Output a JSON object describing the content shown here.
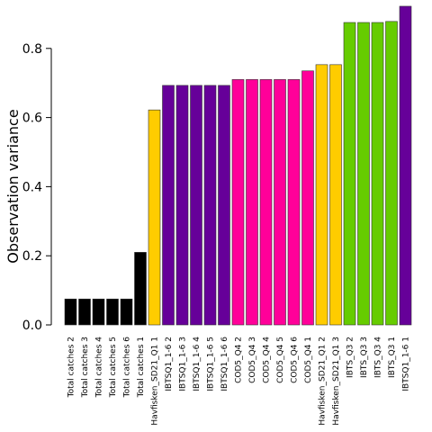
{
  "chart_data": {
    "type": "bar",
    "ylabel": "Observation variance",
    "xlabel": "",
    "ylim": [
      0,
      0.92
    ],
    "yticks": [
      0.0,
      0.2,
      0.4,
      0.6,
      0.8
    ],
    "ytick_labels": [
      "0.0",
      "0.2",
      "0.4",
      "0.6",
      "0.8"
    ],
    "grid": false,
    "categories": [
      "Total catches 2",
      "Total catches 3",
      "Total catches 4",
      "Total catches 5",
      "Total catches 6",
      "Total catches 1",
      "Havfisken_SD21_Q1 1",
      "IBTSQ1_1-6 2",
      "IBTSQ1_1-6 3",
      "IBTSQ1_1-6 4",
      "IBTSQ1_1-6 5",
      "IBTSQ1_1-6 6",
      "COD5_Q4 2",
      "COD5_Q4 3",
      "COD5_Q4 4",
      "COD5_Q4 5",
      "COD5_Q4 6",
      "COD5_Q4 1",
      "Havfisken_SD21_Q1 2",
      "Havfisken_SD21_Q1 3",
      "IBTS_Q3 2",
      "IBTS_Q3 3",
      "IBTS_Q3 4",
      "IBTS_Q3 1",
      "IBTSQ1_1-6 1"
    ],
    "values": [
      0.075,
      0.075,
      0.075,
      0.075,
      0.075,
      0.21,
      0.622,
      0.693,
      0.693,
      0.693,
      0.693,
      0.693,
      0.71,
      0.71,
      0.71,
      0.71,
      0.71,
      0.735,
      0.753,
      0.753,
      0.875,
      0.875,
      0.875,
      0.878,
      0.922
    ],
    "colors": [
      "#000000",
      "#000000",
      "#000000",
      "#000000",
      "#000000",
      "#000000",
      "#FFCC00",
      "#660099",
      "#660099",
      "#660099",
      "#660099",
      "#660099",
      "#FF0099",
      "#FF0099",
      "#FF0099",
      "#FF0099",
      "#FF0099",
      "#FF0099",
      "#FFCC00",
      "#FFCC00",
      "#66CC00",
      "#66CC00",
      "#66CC00",
      "#66CC00",
      "#660099"
    ]
  }
}
